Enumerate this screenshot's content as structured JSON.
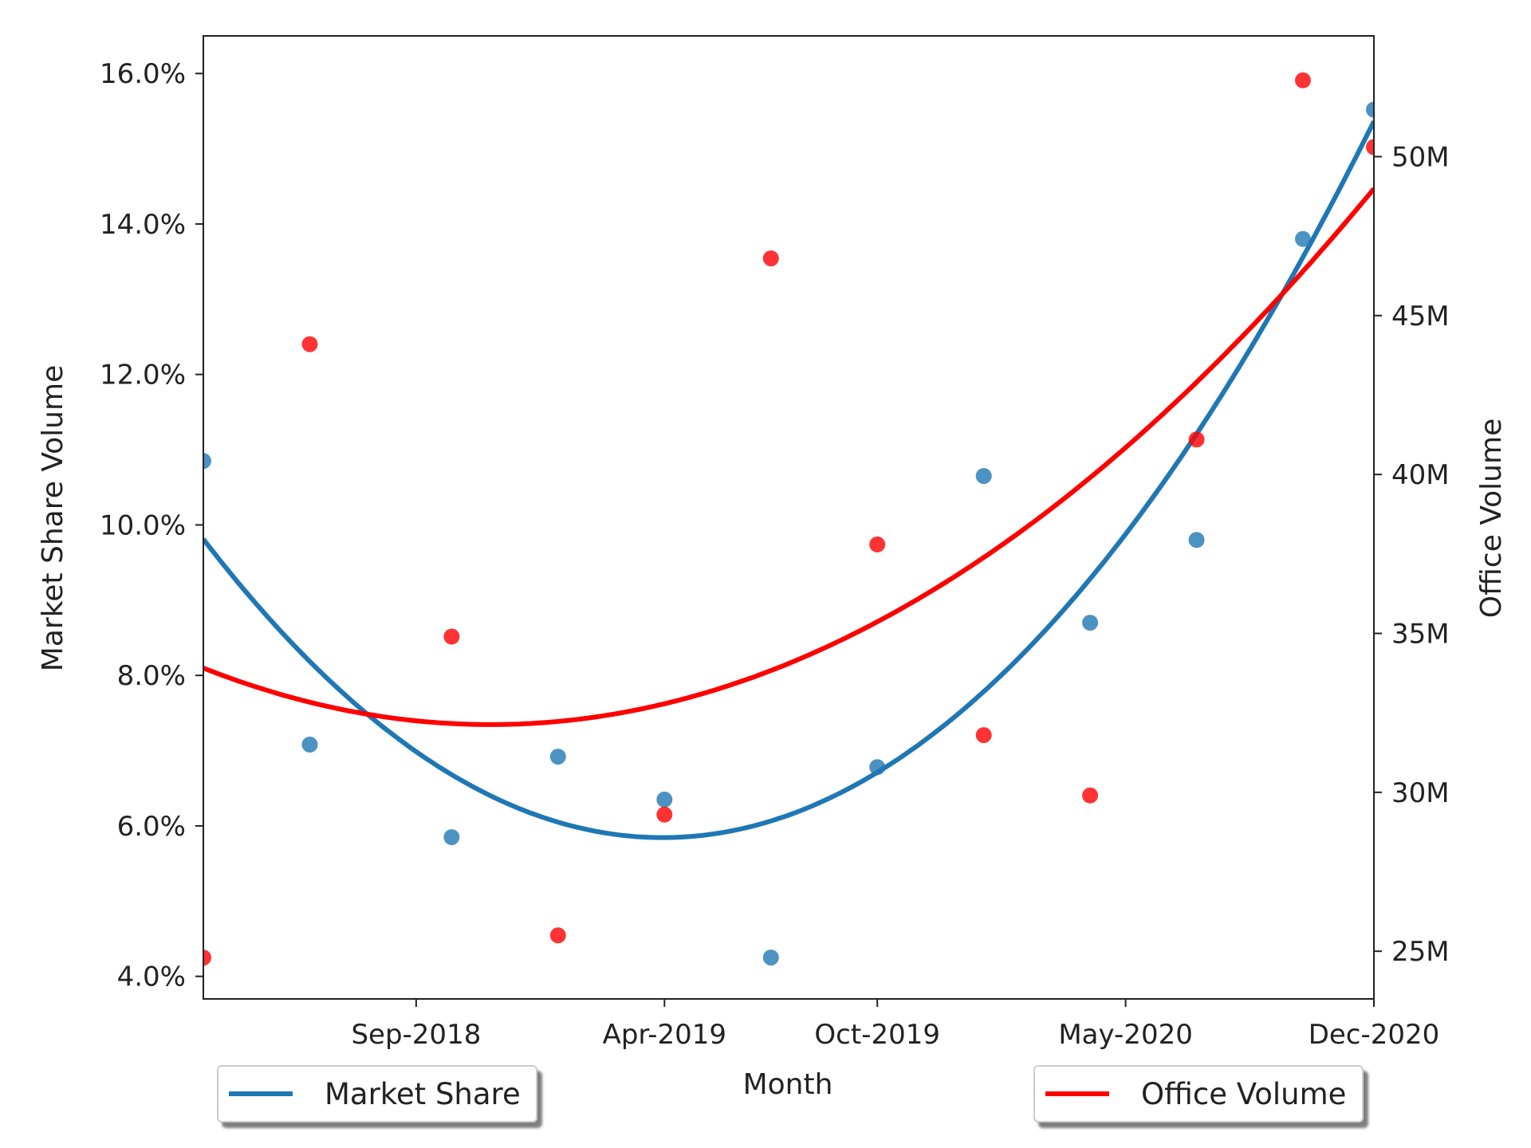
{
  "chart_data": {
    "type": "scatter",
    "xlabel": "Month",
    "ylabel_left": "Market Share Volume",
    "ylabel_right": "Office Volume",
    "x_ticks": [
      "Sep-2018",
      "Apr-2019",
      "Oct-2019",
      "May-2020",
      "Dec-2020"
    ],
    "x_points": [
      "Mar-2018",
      "Jun-2018",
      "Oct-2018",
      "Jan-2019",
      "Apr-2019",
      "Jul-2019",
      "Oct-2019",
      "Jan-2020",
      "Apr-2020",
      "Jul-2020",
      "Oct-2020",
      "Dec-2020"
    ],
    "ylim_left": [
      3.7,
      16.5
    ],
    "yticks_left": [
      "4.0%",
      "6.0%",
      "8.0%",
      "10.0%",
      "12.0%",
      "14.0%",
      "16.0%"
    ],
    "ylim_right": [
      23.5,
      53.8
    ],
    "yticks_right": [
      "25M",
      "30M",
      "35M",
      "40M",
      "45M",
      "50M"
    ],
    "grid": false,
    "series": [
      {
        "name": "Market Share",
        "axis": "left",
        "color": "#1f77b4",
        "values": [
          10.85,
          7.08,
          5.85,
          6.92,
          6.35,
          4.25,
          6.78,
          10.65,
          8.7,
          9.8,
          13.8,
          15.52
        ],
        "trend": "quadratic"
      },
      {
        "name": "Office Volume",
        "axis": "right",
        "color": "#ff0000",
        "values": [
          24.8,
          44.1,
          34.9,
          25.5,
          29.3,
          46.8,
          37.8,
          31.8,
          29.9,
          41.1,
          52.4,
          50.3
        ],
        "trend": "quadratic"
      }
    ],
    "legends": [
      {
        "label": "Market Share",
        "color": "#1f77b4",
        "position": "lower-left"
      },
      {
        "label": "Office Volume",
        "color": "#ff0000",
        "position": "lower-right"
      }
    ]
  }
}
